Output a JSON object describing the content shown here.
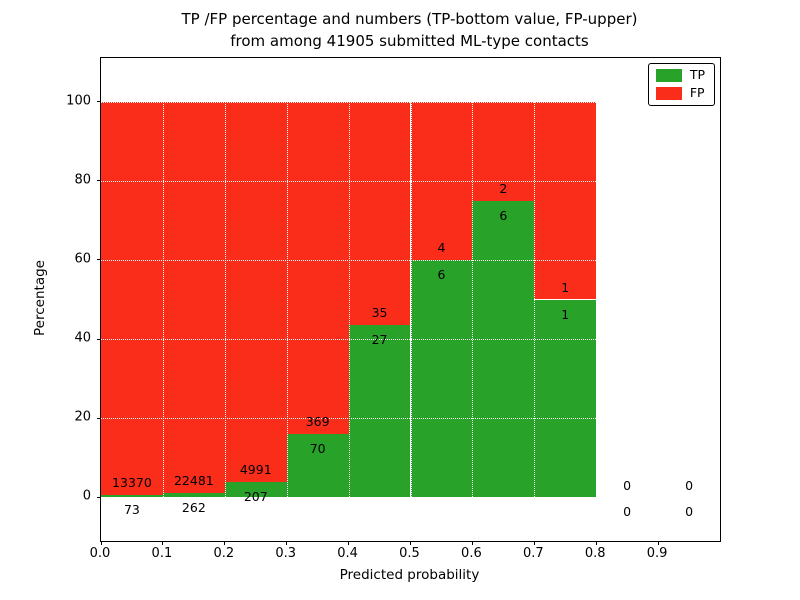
{
  "chart_data": {
    "type": "bar",
    "stacked": true,
    "title_lines": [
      "TP /FP percentage and numbers (TP-bottom value, FP-upper)",
      "from among 41905 submitted ML-type contacts"
    ],
    "xlabel": "Predicted probability",
    "ylabel": "Percentage",
    "xlim": [
      0.0,
      1.0
    ],
    "ylim": [
      -11,
      111
    ],
    "xticks": [
      0.0,
      0.1,
      0.2,
      0.3,
      0.4,
      0.5,
      0.6,
      0.7,
      0.8,
      0.9
    ],
    "xtick_labels": [
      "0.0",
      "0.1",
      "0.2",
      "0.3",
      "0.4",
      "0.5",
      "0.6",
      "0.7",
      "0.8",
      "0.9"
    ],
    "yticks": [
      0,
      20,
      40,
      60,
      80,
      100
    ],
    "ytick_labels": [
      "0",
      "20",
      "40",
      "60",
      "80",
      "100"
    ],
    "grid": {
      "style": "dotted",
      "color": "#ffffff"
    },
    "series": [
      {
        "name": "TP",
        "color": "#28a228"
      },
      {
        "name": "FP",
        "color": "#fa2d1a"
      }
    ],
    "legend": {
      "position": "upper-right",
      "entries": [
        "TP",
        "FP"
      ]
    },
    "bins": [
      {
        "range": [
          0.0,
          0.1
        ],
        "tp": 73,
        "fp": 13370
      },
      {
        "range": [
          0.1,
          0.2
        ],
        "tp": 262,
        "fp": 22481
      },
      {
        "range": [
          0.2,
          0.3
        ],
        "tp": 207,
        "fp": 4991
      },
      {
        "range": [
          0.3,
          0.4
        ],
        "tp": 70,
        "fp": 369
      },
      {
        "range": [
          0.4,
          0.5
        ],
        "tp": 27,
        "fp": 35
      },
      {
        "range": [
          0.5,
          0.6
        ],
        "tp": 6,
        "fp": 4
      },
      {
        "range": [
          0.6,
          0.7
        ],
        "tp": 6,
        "fp": 2
      },
      {
        "range": [
          0.7,
          0.8
        ],
        "tp": 1,
        "fp": 1
      },
      {
        "range": [
          0.8,
          0.9
        ],
        "tp": 0,
        "fp": 0
      },
      {
        "range": [
          0.9,
          1.0
        ],
        "tp": 0,
        "fp": 0
      }
    ],
    "label_offsets": {
      "fp_above_pct": 3.0,
      "tp_below_pct": -3.8
    }
  }
}
